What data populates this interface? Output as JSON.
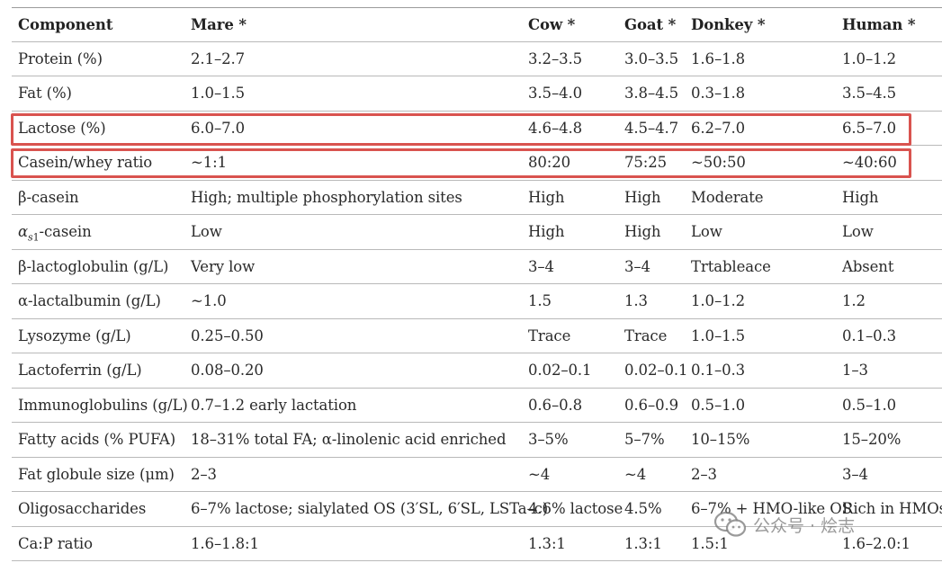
{
  "table": {
    "headers": [
      "Component",
      "Mare *",
      "Cow *",
      "Goat *",
      "Donkey *",
      "Human *"
    ],
    "rows": [
      [
        "Protein (%)",
        "2.1–2.7",
        "3.2–3.5",
        "3.0–3.5",
        "1.6–1.8",
        "1.0–1.2"
      ],
      [
        "Fat (%)",
        "1.0–1.5",
        "3.5–4.0",
        "3.8–4.5",
        "0.3–1.8",
        "3.5–4.5"
      ],
      [
        "Lactose (%)",
        "6.0–7.0",
        "4.6–4.8",
        "4.5–4.7",
        "6.2–7.0",
        "6.5–7.0"
      ],
      [
        "Casein/whey ratio",
        "~1:1",
        "80:20",
        "75:25",
        "~50:50",
        "~40:60"
      ],
      [
        "β-casein",
        "High; multiple phosphorylation sites",
        "High",
        "High",
        "Moderate",
        "High"
      ],
      [
        "αs1-casein",
        "Low",
        "High",
        "High",
        "Low",
        "Low"
      ],
      [
        "β-lactoglobulin (g/L)",
        "Very low",
        "3–4",
        "3–4",
        "Trtableace",
        "Absent"
      ],
      [
        "α-lactalbumin (g/L)",
        "~1.0",
        "1.5",
        "1.3",
        "1.0–1.2",
        "1.2"
      ],
      [
        "Lysozyme (g/L)",
        "0.25–0.50",
        "Trace",
        "Trace",
        "1.0–1.5",
        "0.1–0.3"
      ],
      [
        "Lactoferrin (g/L)",
        "0.08–0.20",
        "0.02–0.1",
        "0.02–0.1",
        "0.1–0.3",
        "1–3"
      ],
      [
        "Immunoglobulins (g/L)",
        "0.7–1.2 early lactation",
        "0.6–0.8",
        "0.6–0.9",
        "0.5–1.0",
        "0.5–1.0"
      ],
      [
        "Fatty acids (% PUFA)",
        "18–31% total FA; α-linolenic acid enriched",
        "3–5%",
        "5–7%",
        "10–15%",
        "15–20%"
      ],
      [
        "Fat globule size (μm)",
        "2–3",
        "~4",
        "~4",
        "2–3",
        "3–4"
      ],
      [
        "Oligosaccharides",
        "6–7% lactose; sialylated OS (3′SL, 6′SL, LSTa–c)",
        "4.6% lactose",
        "4.5%",
        "6–7% + HMO-like OS",
        "Rich in HMOs"
      ],
      [
        "Ca:P ratio",
        "1.6–1.8:1",
        "1.3:1",
        "1.3:1",
        "1.5:1",
        "1.6–2.0:1"
      ]
    ],
    "highlighted_rows": [
      "Lactose (%)",
      "Casein/whey ratio"
    ],
    "highlight_color": "#d9534f"
  },
  "watermark": {
    "text": "公众号 · 烩志",
    "icon": "wechat-icon"
  }
}
